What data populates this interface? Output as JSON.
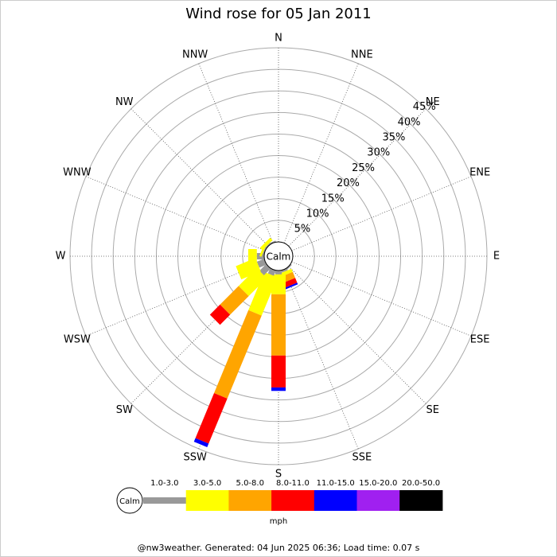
{
  "chart_data": {
    "type": "windrose",
    "title": "Wind rose for 05 Jan 2011",
    "categories": [
      "N",
      "NNE",
      "NE",
      "ENE",
      "E",
      "ESE",
      "SE",
      "SSE",
      "S",
      "SSW",
      "SW",
      "WSW",
      "W",
      "WNW",
      "NW",
      "NNW"
    ],
    "calm_label": "Calm",
    "rlim": [
      0,
      45
    ],
    "rticks": [
      {
        "value": 5,
        "label": "5%"
      },
      {
        "value": 10,
        "label": "10%"
      },
      {
        "value": 15,
        "label": "15%"
      },
      {
        "value": 20,
        "label": "20%"
      },
      {
        "value": 25,
        "label": "25%"
      },
      {
        "value": 30,
        "label": "30%"
      },
      {
        "value": 35,
        "label": "35%"
      },
      {
        "value": 40,
        "label": "40%"
      },
      {
        "value": 45,
        "label": "45%"
      }
    ],
    "unit": "mph",
    "series": [
      {
        "name": "1.0-3.0",
        "color": "#999999",
        "values": [
          0,
          0,
          0,
          0,
          0,
          0,
          0.3,
          0.5,
          0.9,
          1.3,
          2.2,
          1.8,
          1.7,
          0.3,
          0.3,
          0.3
        ]
      },
      {
        "name": "3.0-5.0",
        "color": "#ffff00",
        "values": [
          0,
          0,
          0,
          0,
          0,
          0,
          0,
          0.8,
          4.6,
          9.6,
          5.9,
          4.9,
          2.0,
          0.5,
          0.8,
          0
        ]
      },
      {
        "name": "5.0-8.0",
        "color": "#ffa500",
        "values": [
          0,
          0,
          0,
          0,
          0,
          0,
          0,
          1.5,
          14.2,
          20.8,
          6.1,
          0,
          0,
          0,
          0,
          0
        ]
      },
      {
        "name": "8.0-11.0",
        "color": "#ff0000",
        "values": [
          0,
          0,
          0,
          0,
          0,
          0,
          0,
          1.2,
          7.4,
          11.3,
          3.3,
          0,
          0,
          0,
          0,
          0
        ]
      },
      {
        "name": "11.0-15.0",
        "color": "#0000ff",
        "values": [
          0,
          0,
          0,
          0,
          0,
          0,
          0,
          0.4,
          0.8,
          0.9,
          0,
          0,
          0,
          0,
          0,
          0
        ]
      },
      {
        "name": "15.0-20.0",
        "color": "#a020f0",
        "values": [
          0,
          0,
          0,
          0,
          0,
          0,
          0,
          0,
          0,
          0,
          0,
          0,
          0,
          0,
          0,
          0
        ]
      },
      {
        "name": "20.0-50.0",
        "color": "#000000",
        "values": [
          0,
          0,
          0,
          0,
          0,
          0,
          0,
          0,
          0,
          0,
          0,
          0,
          0,
          0,
          0,
          0
        ]
      }
    ],
    "footer": "@nw3weather. Generated: 04 Jun 2025 06:36; Load time: 0.07 s"
  }
}
